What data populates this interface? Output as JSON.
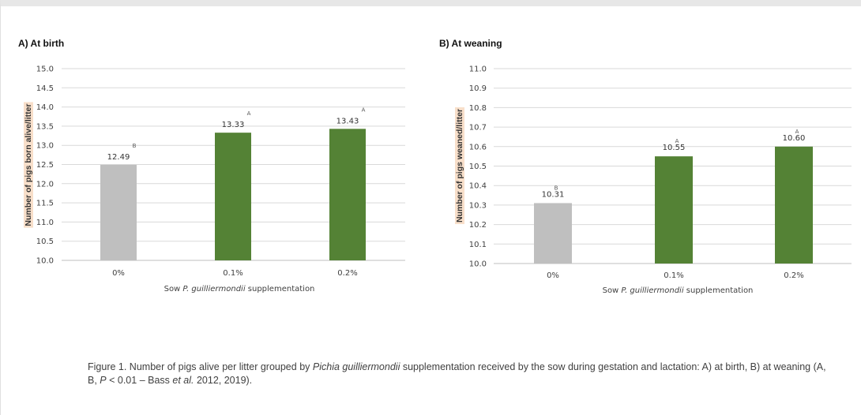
{
  "colors": {
    "control": "#bfbfbf",
    "treatment": "#548235",
    "grid": "#d9d9d9",
    "ylabel_bg": "#f8dfca"
  },
  "chart_data": [
    {
      "type": "bar",
      "title": "A) At birth",
      "categories": [
        "0%",
        "0.1%",
        "0.2%"
      ],
      "values": [
        12.49,
        13.33,
        13.43
      ],
      "value_labels": [
        "12.49",
        "13.33",
        "13.43"
      ],
      "significance": [
        "B",
        "A",
        "A"
      ],
      "ylim": [
        10.0,
        15.0
      ],
      "yticks": [
        "10.0",
        "10.5",
        "11.0",
        "11.5",
        "12.0",
        "12.5",
        "13.0",
        "13.5",
        "14.0",
        "14.5",
        "15.0"
      ],
      "ylabel": "Number of pigs born alive/litter",
      "xlabel_prefix": "Sow ",
      "xlabel_italic": "P. guilliermondii",
      "xlabel_suffix": " supplementation",
      "grid": true
    },
    {
      "type": "bar",
      "title": "B) At weaning",
      "categories": [
        "0%",
        "0.1%",
        "0.2%"
      ],
      "values": [
        10.31,
        10.55,
        10.6
      ],
      "value_labels": [
        "10.31",
        "10.55",
        "10.60"
      ],
      "significance": [
        "B",
        "A",
        "A"
      ],
      "ylim": [
        10.0,
        11.0
      ],
      "yticks": [
        "10.0",
        "10.1",
        "10.2",
        "10.3",
        "10.4",
        "10.5",
        "10.6",
        "10.7",
        "10.8",
        "10.9",
        "11.0"
      ],
      "ylabel": "Number of pigs weaned/litter",
      "xlabel_prefix": "Sow ",
      "xlabel_italic": "P. guilliermondii",
      "xlabel_suffix": " supplementation",
      "grid": true
    }
  ],
  "caption": {
    "part1": "Figure 1. Number of pigs alive per litter grouped by ",
    "italic1": "Pichia guilliermondii",
    "part2": " supplementation received by the sow during gestation and lactation: A) at birth, B) at weaning (A, B, ",
    "italic2": "P",
    "part3": " < 0.01 – Bass ",
    "italic3": "et al.",
    "part4": " 2012, 2019)."
  }
}
